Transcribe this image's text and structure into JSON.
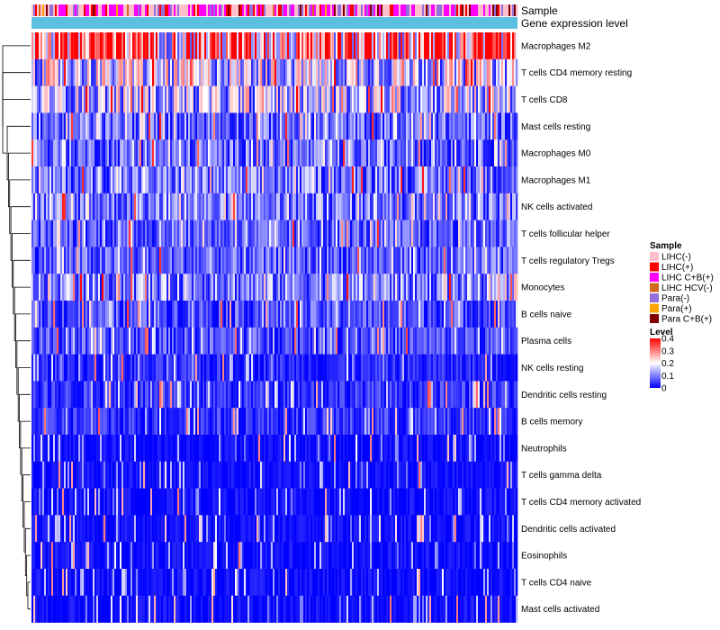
{
  "chart_data": {
    "type": "heatmap",
    "title": "",
    "annotation_tracks": [
      {
        "name": "Sample",
        "label": "Sample"
      },
      {
        "name": "Gene expression level",
        "label": "Gene expression level",
        "color": "#5bc0e0"
      }
    ],
    "rows": [
      {
        "label": "Macrophages M2",
        "level": 0.3
      },
      {
        "label": "T cells CD4 memory resting",
        "level": 0.16
      },
      {
        "label": "T cells CD8",
        "level": 0.14
      },
      {
        "label": "Mast cells resting",
        "level": 0.08
      },
      {
        "label": "Macrophages M0",
        "level": 0.08
      },
      {
        "label": "Macrophages M1",
        "level": 0.09
      },
      {
        "label": "NK cells activated",
        "level": 0.09
      },
      {
        "label": "T cells follicular helper",
        "level": 0.07
      },
      {
        "label": "T cells regulatory  Tregs",
        "level": 0.07
      },
      {
        "label": "Monocytes",
        "level": 0.1
      },
      {
        "label": "B cells naive",
        "level": 0.06
      },
      {
        "label": "Plasma cells",
        "level": 0.06
      },
      {
        "label": "NK cells resting",
        "level": 0.03
      },
      {
        "label": "Dendritic cells resting",
        "level": 0.04
      },
      {
        "label": "B cells memory",
        "level": 0.04
      },
      {
        "label": "Neutrophils",
        "level": 0.01
      },
      {
        "label": "T cells gamma delta",
        "level": 0.01
      },
      {
        "label": "T cells CD4 memory activated",
        "level": 0.01
      },
      {
        "label": "Dendritic cells activated",
        "level": 0.01
      },
      {
        "label": "Eosinophils",
        "level": 0.01
      },
      {
        "label": "T cells CD4 naive",
        "level": 0.01
      },
      {
        "label": "Mast cells activated",
        "level": 0.01
      }
    ],
    "sample_legend": {
      "title": "Sample",
      "entries": [
        {
          "label": "LIHC(-)",
          "color": "#ffc0cb"
        },
        {
          "label": "LIHC(+)",
          "color": "#ff0000"
        },
        {
          "label": "LIHC C+B(+)",
          "color": "#ff00ff"
        },
        {
          "label": "LIHC HCV(-)",
          "color": "#d2691e"
        },
        {
          "label": "Para(-)",
          "color": "#9370db"
        },
        {
          "label": "Para(+)",
          "color": "#ffa500"
        },
        {
          "label": "Para C+B(+)",
          "color": "#800000"
        }
      ]
    },
    "level_legend": {
      "title": "Level",
      "ticks": [
        "0.4",
        "0.3",
        "0.2",
        "0.1",
        "0"
      ],
      "range": [
        0,
        0.4
      ],
      "color_low": "#0000ff",
      "color_mid": "#ffffff",
      "color_high": "#ff0000"
    }
  }
}
